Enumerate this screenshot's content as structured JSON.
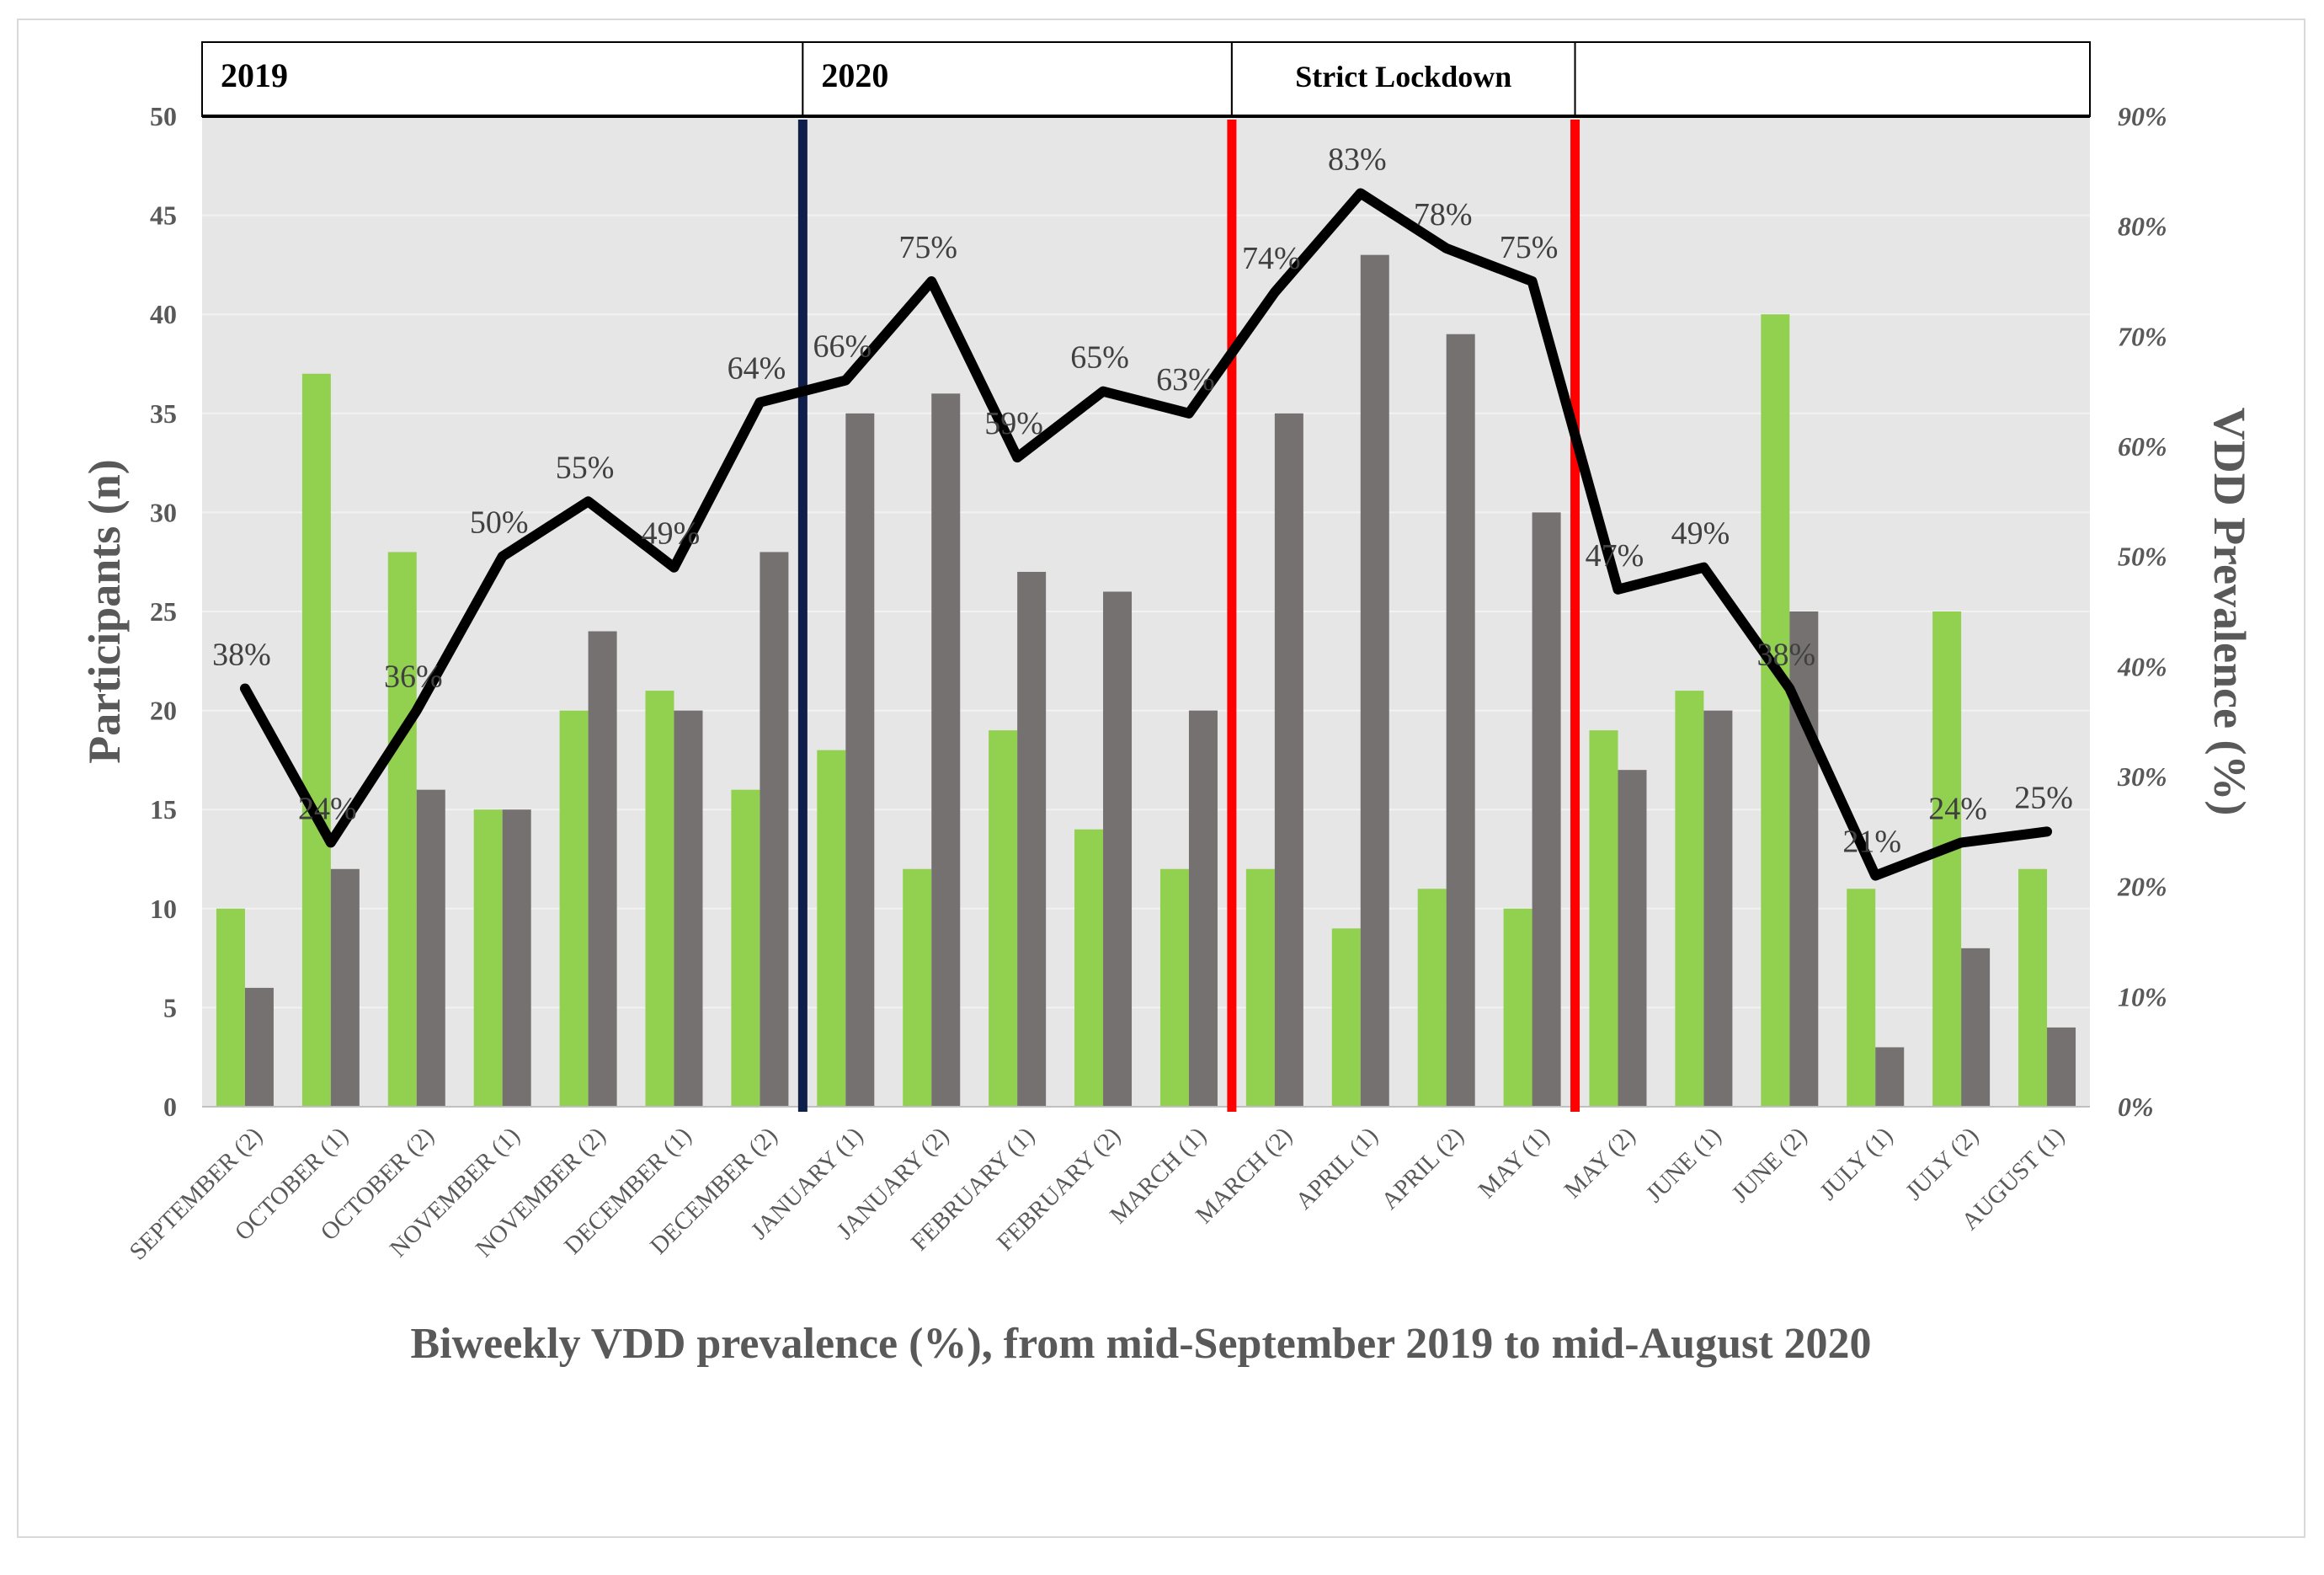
{
  "chart_data": {
    "type": "bar",
    "categories": [
      "SEPTEMBER (2)",
      "OCTOBER (1)",
      "OCTOBER (2)",
      "NOVEMBER (1)",
      "NOVEMBER (2)",
      "DECEMBER (1)",
      "DECEMBER (2)",
      "JANUARY (1)",
      "JANUARY (2)",
      "FEBRUARY (1)",
      "FEBRUARY (2)",
      "MARCH (1)",
      "MARCH (2)",
      "APRIL (1)",
      "APRIL (2)",
      "MAY (1)",
      "MAY (2)",
      "JUNE (1)",
      "JUNE (2)",
      "JULY (1)",
      "JULY (2)",
      "AUGUST (1)"
    ],
    "series": [
      {
        "name": "Green bars",
        "kind": "bar",
        "axis": "left",
        "color": "#92d050",
        "values": [
          10,
          37,
          28,
          15,
          20,
          21,
          16,
          18,
          12,
          19,
          14,
          12,
          12,
          9,
          11,
          10,
          19,
          21,
          40,
          11,
          25,
          12
        ]
      },
      {
        "name": "Gray bars",
        "kind": "bar",
        "axis": "left",
        "color": "#767171",
        "values": [
          6,
          12,
          16,
          15,
          24,
          20,
          28,
          35,
          36,
          27,
          26,
          20,
          35,
          43,
          39,
          30,
          17,
          20,
          25,
          3,
          8,
          4
        ]
      },
      {
        "name": "VDD Prevalence",
        "kind": "line",
        "axis": "right",
        "color": "#000000",
        "values": [
          38,
          24,
          36,
          50,
          55,
          49,
          64,
          66,
          75,
          59,
          65,
          63,
          74,
          83,
          78,
          75,
          47,
          49,
          38,
          21,
          24,
          25
        ]
      }
    ],
    "line_labels": [
      "38%",
      "24%",
      "36%",
      "50%",
      "55%",
      "49%",
      "64%",
      "66%",
      "75%",
      "59%",
      "65%",
      "63%",
      "74%",
      "83%",
      "78%",
      "75%",
      "47%",
      "49%",
      "38%",
      "21%",
      "24%",
      "25%"
    ],
    "ylim": [
      0,
      50
    ],
    "y_ticks": [
      "0",
      "5",
      "10",
      "15",
      "20",
      "25",
      "30",
      "35",
      "40",
      "45",
      "50"
    ],
    "y2lim": [
      0,
      90
    ],
    "y2_ticks": [
      "0%",
      "10%",
      "20%",
      "30%",
      "40%",
      "50%",
      "60%",
      "70%",
      "80%",
      "90%"
    ],
    "ylabel": "Participants (n)",
    "y2label": "VDD Prevalence (%)",
    "xlabel": "Biweekly VDD prevalence (%), from mid-September 2019 to mid-August 2020",
    "period_headers": [
      {
        "label": "2019",
        "start_index": 0,
        "end_index": 7
      },
      {
        "label": "2020",
        "start_index": 7,
        "end_index": 12
      },
      {
        "label": "Strict Lockdown",
        "start_index": 12,
        "end_index": 16
      },
      {
        "label": "",
        "start_index": 16,
        "end_index": 22
      }
    ],
    "divider_lines": [
      {
        "at_index": 7,
        "color": "#0f1f4a"
      },
      {
        "at_index": 12,
        "color": "#ff0000"
      },
      {
        "at_index": 16,
        "color": "#ff0000"
      }
    ],
    "grid": true,
    "colors": {
      "plot_bg": "#e7e6e6",
      "grid": "#f2f2f2",
      "axis_text": "#595959",
      "header_text": "#000000"
    }
  }
}
